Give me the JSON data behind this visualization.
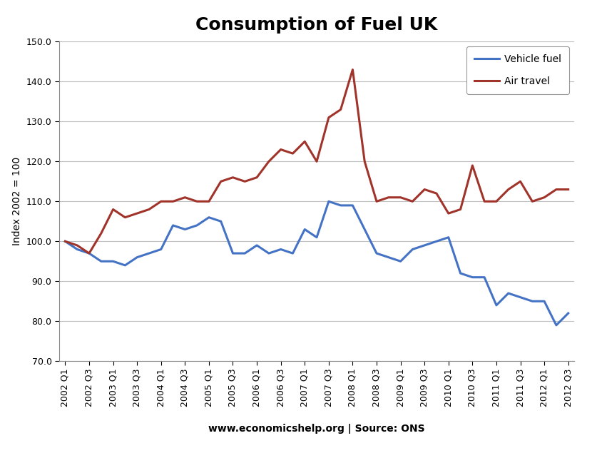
{
  "title": "Consumption of Fuel UK",
  "ylabel": "Index 2002 = 100",
  "xlabel_note": "www.economicshelp.org | Source: ONS",
  "ylim": [
    70.0,
    150.0
  ],
  "yticks": [
    70.0,
    80.0,
    90.0,
    100.0,
    110.0,
    120.0,
    130.0,
    140.0,
    150.0
  ],
  "vehicle_color": "#4472C4",
  "air_color": "#A0332A",
  "background_color": "#FFFFFF",
  "title_fontsize": 18,
  "axis_fontsize": 10,
  "tick_fontsize": 9,
  "legend_fontsize": 10,
  "linewidth": 2.2,
  "vehicle_fuel": [
    100,
    98,
    97,
    95,
    95,
    94,
    96,
    97,
    98,
    104,
    103,
    104,
    106,
    105,
    97,
    97,
    99,
    97,
    98,
    97,
    103,
    101,
    110,
    109,
    109,
    103,
    97,
    96,
    95,
    98,
    99,
    100,
    101,
    92,
    91,
    91,
    84,
    87,
    86,
    85,
    85,
    79,
    82
  ],
  "air_travel": [
    100,
    99,
    97,
    102,
    108,
    106,
    107,
    108,
    110,
    110,
    111,
    110,
    110,
    115,
    116,
    115,
    116,
    120,
    123,
    122,
    125,
    120,
    131,
    133,
    143,
    120,
    110,
    111,
    111,
    110,
    113,
    112,
    107,
    108,
    119,
    110,
    110,
    113,
    115,
    110,
    111,
    113,
    113
  ]
}
